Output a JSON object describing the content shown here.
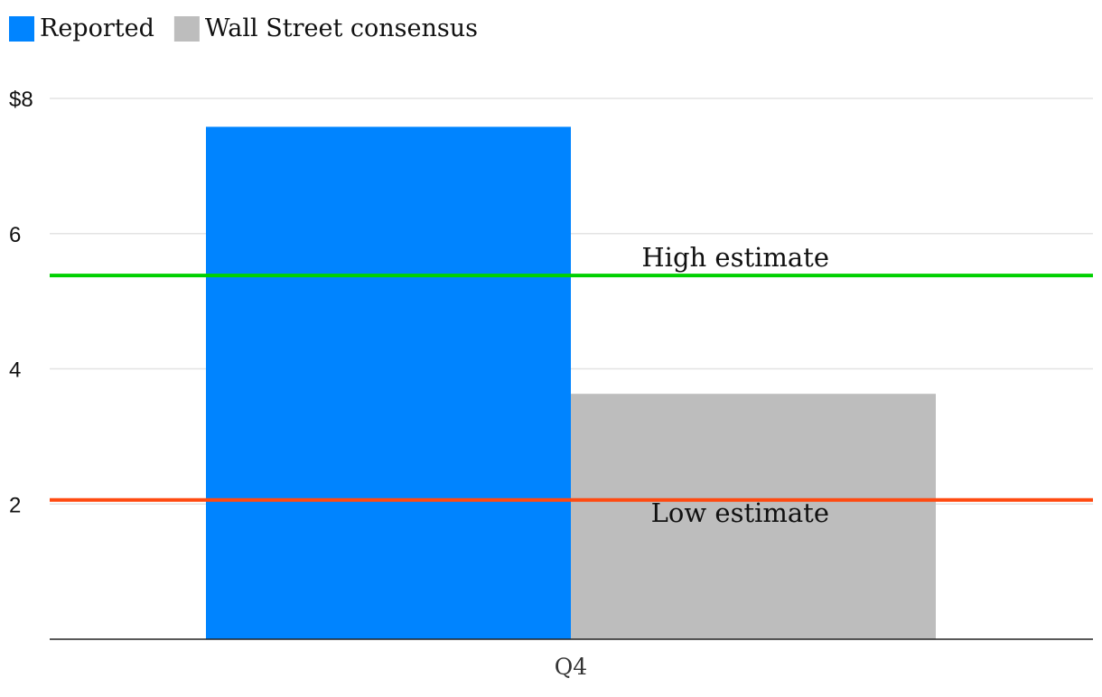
{
  "chart_data": {
    "type": "bar",
    "categories": [
      "Q4"
    ],
    "series": [
      {
        "name": "Reported",
        "values": [
          7.58
        ],
        "color": "#0084ff"
      },
      {
        "name": "Wall Street consensus",
        "values": [
          3.63
        ],
        "color": "#bdbdbd"
      }
    ],
    "y_ticks": [
      {
        "value": 8,
        "label": "$8"
      },
      {
        "value": 6,
        "label": "6"
      },
      {
        "value": 4,
        "label": "4"
      },
      {
        "value": 2,
        "label": "2"
      }
    ],
    "ylim": [
      0,
      8
    ],
    "grid": true,
    "legend_position": "top-left",
    "reference_lines": [
      {
        "label": "High estimate",
        "value": 5.38,
        "color": "#00d100"
      },
      {
        "label": "Low estimate",
        "value": 2.06,
        "color": "#ff4a11"
      }
    ],
    "title": "",
    "xlabel": "",
    "ylabel": ""
  }
}
